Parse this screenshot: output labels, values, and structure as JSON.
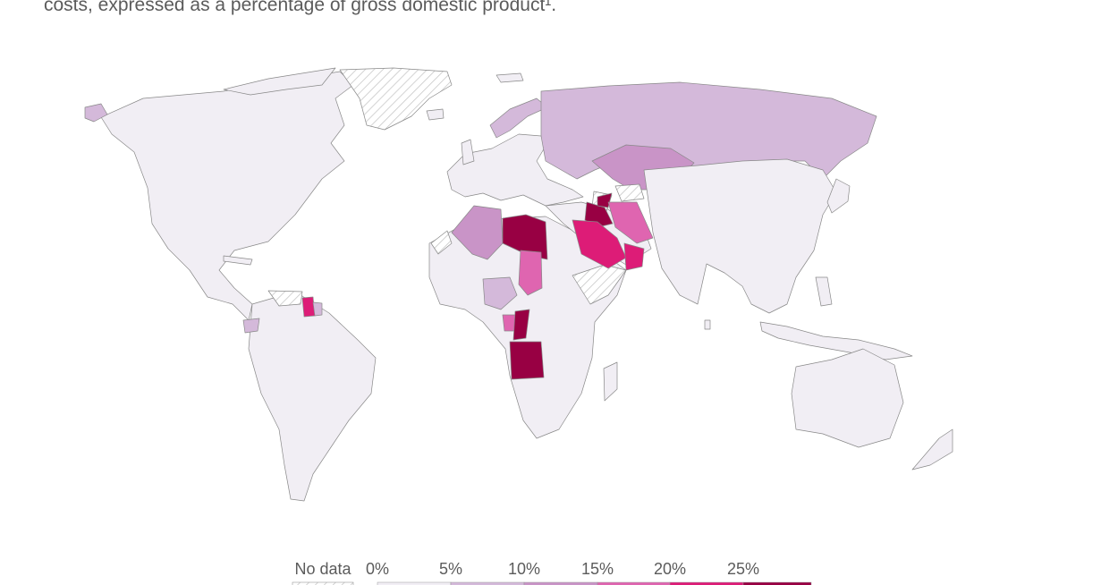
{
  "subtitle": "costs, expressed as a percentage of gross domestic product¹.",
  "colors": {
    "land": "#f1eef4",
    "border": "#888888",
    "no_data_hatch": "#c8c8c8",
    "bin_0_5": "#f1eef4",
    "bin_5_10": "#d4b9da",
    "bin_10_15": "#c994c7",
    "bin_15_20": "#df65b0",
    "bin_20_25": "#dd1c77",
    "bin_25_plus": "#980043"
  },
  "legend": {
    "no_data_label": "No data",
    "ticks": [
      "0%",
      "5%",
      "10%",
      "15%",
      "20%",
      "25%"
    ]
  },
  "highlighted_regions": [
    {
      "name": "Libya",
      "bin": "bin_25_plus"
    },
    {
      "name": "Iraq",
      "bin": "bin_25_plus"
    },
    {
      "name": "Angola",
      "bin": "bin_25_plus"
    },
    {
      "name": "Congo",
      "bin": "bin_25_plus"
    },
    {
      "name": "Kuwait",
      "bin": "bin_25_plus"
    },
    {
      "name": "Saudi Arabia",
      "bin": "bin_20_25"
    },
    {
      "name": "Oman",
      "bin": "bin_20_25"
    },
    {
      "name": "Guyana",
      "bin": "bin_20_25"
    },
    {
      "name": "Gabon",
      "bin": "bin_15_20"
    },
    {
      "name": "Iran",
      "bin": "bin_15_20"
    },
    {
      "name": "South Sudan",
      "bin": "bin_15_20"
    },
    {
      "name": "Algeria",
      "bin": "bin_10_15"
    },
    {
      "name": "Kazakhstan",
      "bin": "bin_10_15"
    },
    {
      "name": "Russia",
      "bin": "bin_5_10"
    },
    {
      "name": "Norway",
      "bin": "bin_5_10"
    },
    {
      "name": "Nigeria",
      "bin": "bin_5_10"
    },
    {
      "name": "Ecuador",
      "bin": "bin_5_10"
    },
    {
      "name": "Suriname",
      "bin": "bin_5_10"
    },
    {
      "name": "Alaska",
      "bin": "bin_5_10"
    }
  ],
  "no_data_regions": [
    "Greenland",
    "Western Sahara",
    "Venezuela",
    "Somalia",
    "Turkmenistan",
    "Syria"
  ]
}
